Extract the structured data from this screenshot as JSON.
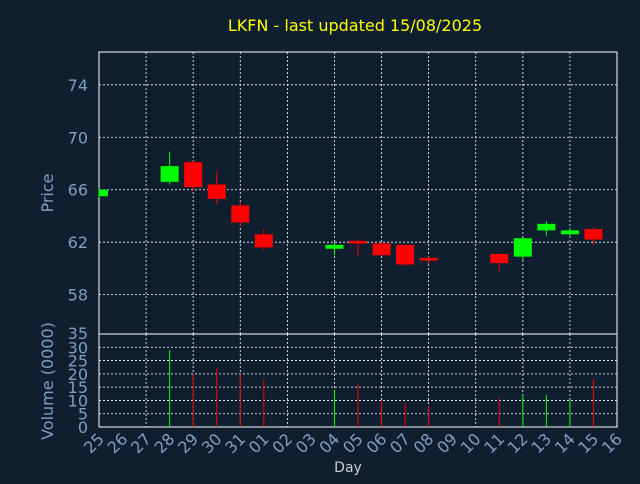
{
  "chart_data": {
    "type": "candlestick",
    "title": "LKFN - last updated 15/08/2025",
    "xlabel": "Day",
    "price_panel": {
      "ylabel": "Price",
      "ylim": [
        55,
        76.5
      ],
      "yticks": [
        58,
        62,
        66,
        70,
        74
      ]
    },
    "volume_panel": {
      "ylabel": "Volume (0000)",
      "ylim": [
        0,
        35
      ],
      "yticks": [
        0,
        5,
        10,
        15,
        20,
        25,
        30
      ],
      "top_label": "35"
    },
    "grid": true,
    "days": [
      "25",
      "26",
      "27",
      "28",
      "29",
      "30",
      "31",
      "01",
      "02",
      "03",
      "04",
      "05",
      "06",
      "07",
      "08",
      "09",
      "10",
      "11",
      "12",
      "13",
      "14",
      "15",
      "16"
    ],
    "candles": [
      {
        "day": "25",
        "open": 65.5,
        "high": 66.1,
        "low": 65.4,
        "close": 66.0,
        "volume": 0
      },
      {
        "day": "28",
        "open": 66.6,
        "high": 68.9,
        "low": 66.4,
        "close": 67.8,
        "volume": 29
      },
      {
        "day": "29",
        "open": 68.1,
        "high": 68.2,
        "low": 65.9,
        "close": 66.2,
        "volume": 20
      },
      {
        "day": "30",
        "open": 66.4,
        "high": 67.4,
        "low": 64.9,
        "close": 65.3,
        "volume": 22
      },
      {
        "day": "31",
        "open": 64.8,
        "high": 65.1,
        "low": 63.2,
        "close": 63.5,
        "volume": 20
      },
      {
        "day": "01",
        "open": 62.6,
        "high": 63.0,
        "low": 61.4,
        "close": 61.6,
        "volume": 18
      },
      {
        "day": "04",
        "open": 61.5,
        "high": 62.0,
        "low": 61.0,
        "close": 61.8,
        "volume": 14
      },
      {
        "day": "05",
        "open": 62.1,
        "high": 62.2,
        "low": 61.0,
        "close": 61.9,
        "volume": 16
      },
      {
        "day": "06",
        "open": 61.9,
        "high": 62.0,
        "low": 61.0,
        "close": 61.0,
        "volume": 10
      },
      {
        "day": "07",
        "open": 61.8,
        "high": 61.8,
        "low": 60.2,
        "close": 60.3,
        "volume": 9
      },
      {
        "day": "08",
        "open": 60.8,
        "high": 60.9,
        "low": 60.3,
        "close": 60.6,
        "volume": 8
      },
      {
        "day": "11",
        "open": 61.1,
        "high": 61.1,
        "low": 59.8,
        "close": 60.4,
        "volume": 11
      },
      {
        "day": "12",
        "open": 60.9,
        "high": 62.3,
        "low": 60.6,
        "close": 62.3,
        "volume": 12
      },
      {
        "day": "13",
        "open": 62.9,
        "high": 63.6,
        "low": 62.5,
        "close": 63.4,
        "volume": 12
      },
      {
        "day": "14",
        "open": 62.6,
        "high": 63.1,
        "low": 62.5,
        "close": 62.9,
        "volume": 10
      },
      {
        "day": "15",
        "open": 63.0,
        "high": 63.1,
        "low": 61.8,
        "close": 62.2,
        "volume": 18
      }
    ],
    "colors": {
      "background": "#0f1f30",
      "up": "#00ff00",
      "down": "#ff0000",
      "axis_text": "#7f9fc0",
      "title": "#ffff00",
      "grid": "#ffffff"
    }
  }
}
